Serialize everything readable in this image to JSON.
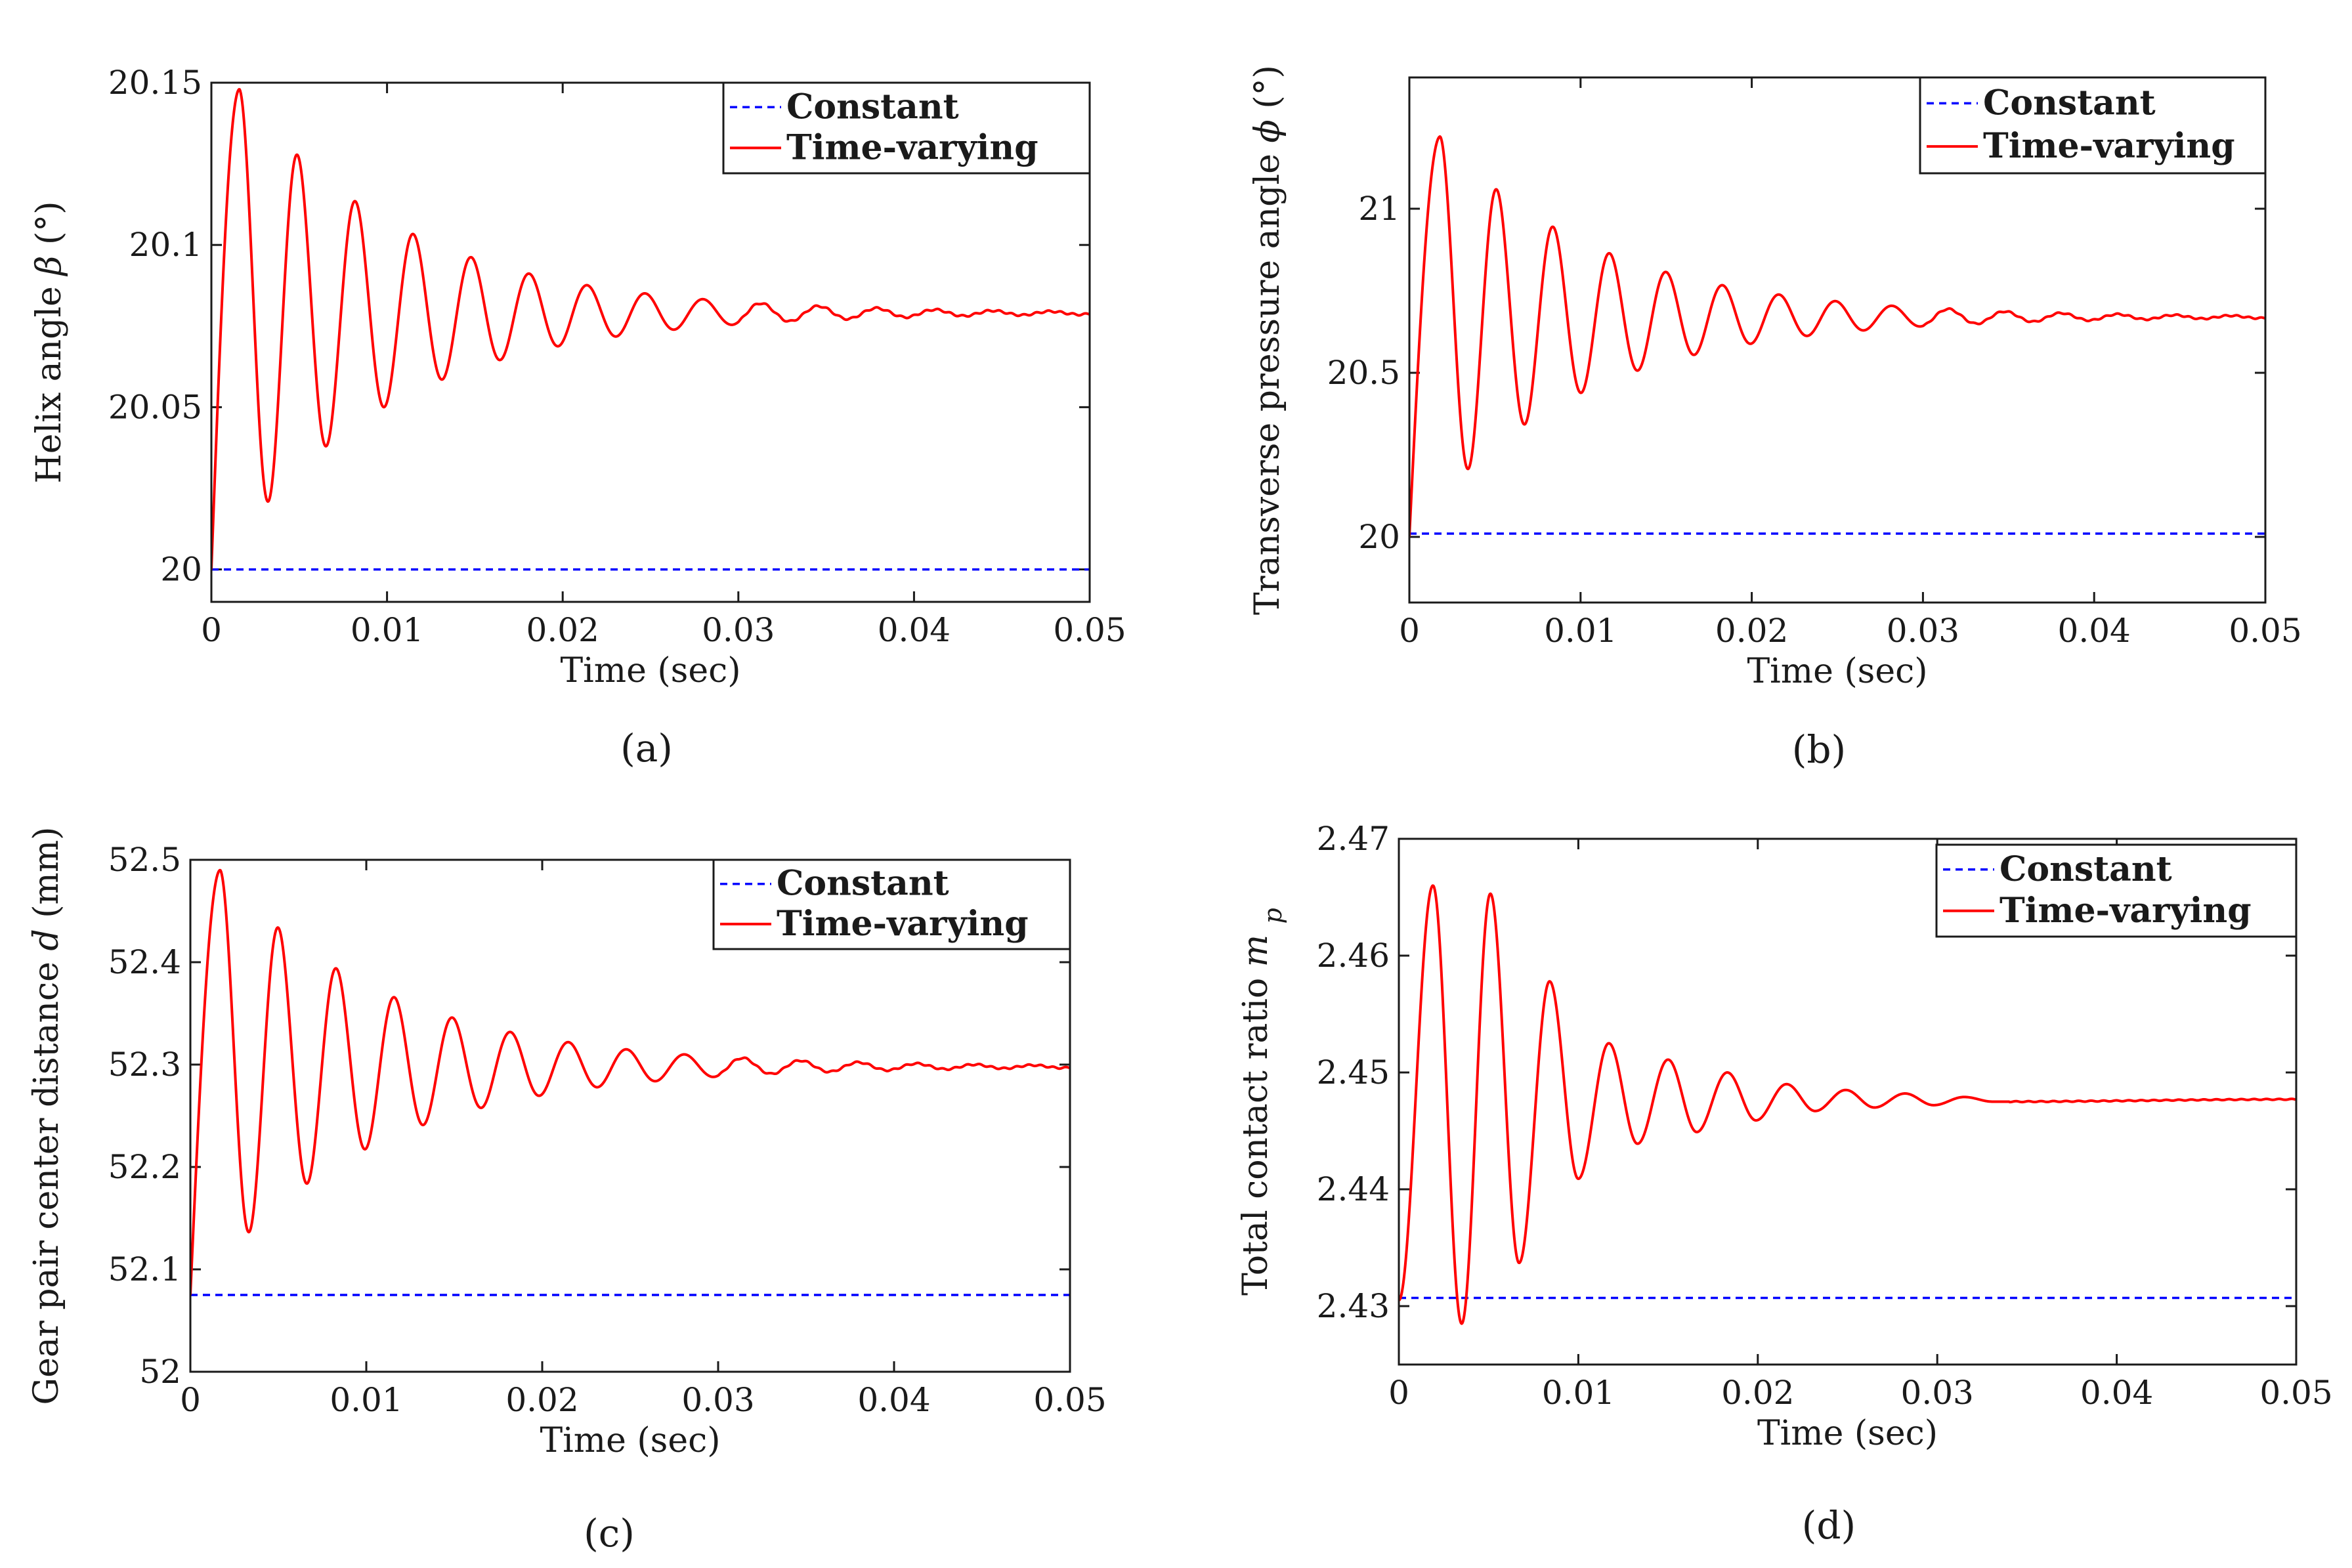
{
  "figure": {
    "xlabel": "Time (sec)",
    "legend": {
      "constant": "Constant",
      "time_varying": "Time-varying"
    },
    "colors": {
      "constant": "#0000ff",
      "time_varying": "#ff0000",
      "frame": "#1a1a1a"
    }
  },
  "chart_data": [
    {
      "id": "a",
      "type": "line",
      "caption": "(a)",
      "ylabel_prefix": "Helix angle",
      "ylabel_symbol": "β",
      "ylabel_unit": "(°)",
      "xlabel": "Time (sec)",
      "xlim": [
        0,
        0.05
      ],
      "ylim": [
        19.99,
        20.15
      ],
      "xticks": [
        0,
        0.01,
        0.02,
        0.03,
        0.04,
        0.05
      ],
      "xtick_labels": [
        "0",
        "0.01",
        "0.02",
        "0.03",
        "0.04",
        "0.05"
      ],
      "yticks": [
        20,
        20.05,
        20.1,
        20.15
      ],
      "ytick_labels": [
        "20",
        "20.05",
        "20.1",
        "20.15"
      ],
      "series": [
        {
          "name": "Constant",
          "style": "dashed",
          "color": "#0000ff",
          "value": 20.0
        },
        {
          "name": "Time-varying",
          "style": "solid",
          "color": "#ff0000",
          "start": 20.0,
          "steady": 20.079,
          "first_peak": 20.148,
          "peak_time": 0.0016,
          "period": 0.0033,
          "decay": 0.0095
        }
      ]
    },
    {
      "id": "b",
      "type": "line",
      "caption": "(b)",
      "ylabel_prefix": "Transverse pressure angle",
      "ylabel_symbol": "ϕ",
      "ylabel_unit": "(°)",
      "xlabel": "Time (sec)",
      "xlim": [
        0,
        0.05
      ],
      "ylim": [
        19.8,
        21.4
      ],
      "xticks": [
        0,
        0.01,
        0.02,
        0.03,
        0.04,
        0.05
      ],
      "xtick_labels": [
        "0",
        "0.01",
        "0.02",
        "0.03",
        "0.04",
        "0.05"
      ],
      "yticks": [
        20,
        20.5,
        21
      ],
      "ytick_labels": [
        "20",
        "20.5",
        "21"
      ],
      "series": [
        {
          "name": "Constant",
          "style": "dashed",
          "color": "#0000ff",
          "value": 20.01
        },
        {
          "name": "Time-varying",
          "style": "solid",
          "color": "#ff0000",
          "start": 20.0,
          "steady": 20.67,
          "first_peak": 21.22,
          "peak_time": 0.0018,
          "period": 0.0033,
          "decay": 0.0095
        }
      ]
    },
    {
      "id": "c",
      "type": "line",
      "caption": "(c)",
      "ylabel_prefix": "Gear pair center distance",
      "ylabel_symbol": "d",
      "ylabel_unit": "(mm)",
      "xlabel": "Time (sec)",
      "xlim": [
        0,
        0.05
      ],
      "ylim": [
        52,
        52.5
      ],
      "xticks": [
        0,
        0.01,
        0.02,
        0.03,
        0.04,
        0.05
      ],
      "xtick_labels": [
        "0",
        "0.01",
        "0.02",
        "0.03",
        "0.04",
        "0.05"
      ],
      "yticks": [
        52,
        52.1,
        52.2,
        52.3,
        52.4,
        52.5
      ],
      "ytick_labels": [
        "52",
        "52.1",
        "52.2",
        "52.3",
        "52.4",
        "52.5"
      ],
      "series": [
        {
          "name": "Constant",
          "style": "dashed",
          "color": "#0000ff",
          "value": 52.075
        },
        {
          "name": "Time-varying",
          "style": "solid",
          "color": "#ff0000",
          "start": 52.075,
          "steady": 52.298,
          "first_peak": 52.49,
          "peak_time": 0.0017,
          "period": 0.0033,
          "decay": 0.0095
        }
      ]
    },
    {
      "id": "d",
      "type": "line",
      "caption": "(d)",
      "ylabel_prefix": "Total contact ratio",
      "ylabel_symbol": "m",
      "ylabel_subscript": "p",
      "ylabel_unit": "",
      "xlabel": "Time (sec)",
      "xlim": [
        0,
        0.05
      ],
      "ylim": [
        2.425,
        2.47
      ],
      "xticks": [
        0,
        0.01,
        0.02,
        0.03,
        0.04,
        0.05
      ],
      "xtick_labels": [
        "0",
        "0.01",
        "0.02",
        "0.03",
        "0.04",
        "0.05"
      ],
      "yticks": [
        2.43,
        2.44,
        2.45,
        2.46,
        2.47
      ],
      "ytick_labels": [
        "2.43",
        "2.44",
        "2.45",
        "2.46",
        "2.47"
      ],
      "series": [
        {
          "name": "Constant",
          "style": "dashed",
          "color": "#0000ff",
          "value": 2.4307
        },
        {
          "name": "Time-varying",
          "style": "solid",
          "color": "#ff0000",
          "start": 2.4305,
          "steady": 2.4477,
          "peak_time": 0.0019,
          "period": 0.00325,
          "peaks": [
            {
              "t": 0.0019,
              "v": 2.466
            },
            {
              "t": 0.0035,
              "v": 2.4285
            },
            {
              "t": 0.0051,
              "v": 2.4653
            },
            {
              "t": 0.0067,
              "v": 2.4337
            },
            {
              "t": 0.0084,
              "v": 2.4578
            },
            {
              "t": 0.01,
              "v": 2.4409
            },
            {
              "t": 0.0117,
              "v": 2.4525
            },
            {
              "t": 0.0133,
              "v": 2.4439
            },
            {
              "t": 0.015,
              "v": 2.4511
            },
            {
              "t": 0.0166,
              "v": 2.4449
            },
            {
              "t": 0.0183,
              "v": 2.45
            },
            {
              "t": 0.0199,
              "v": 2.4459
            },
            {
              "t": 0.0216,
              "v": 2.449
            },
            {
              "t": 0.0232,
              "v": 2.4467
            },
            {
              "t": 0.0249,
              "v": 2.4485
            },
            {
              "t": 0.0265,
              "v": 2.447
            },
            {
              "t": 0.0282,
              "v": 2.4482
            },
            {
              "t": 0.0298,
              "v": 2.4472
            },
            {
              "t": 0.0315,
              "v": 2.4479
            },
            {
              "t": 0.0331,
              "v": 2.4475
            },
            {
              "t": 0.05,
              "v": 2.4477
            }
          ]
        }
      ]
    }
  ]
}
